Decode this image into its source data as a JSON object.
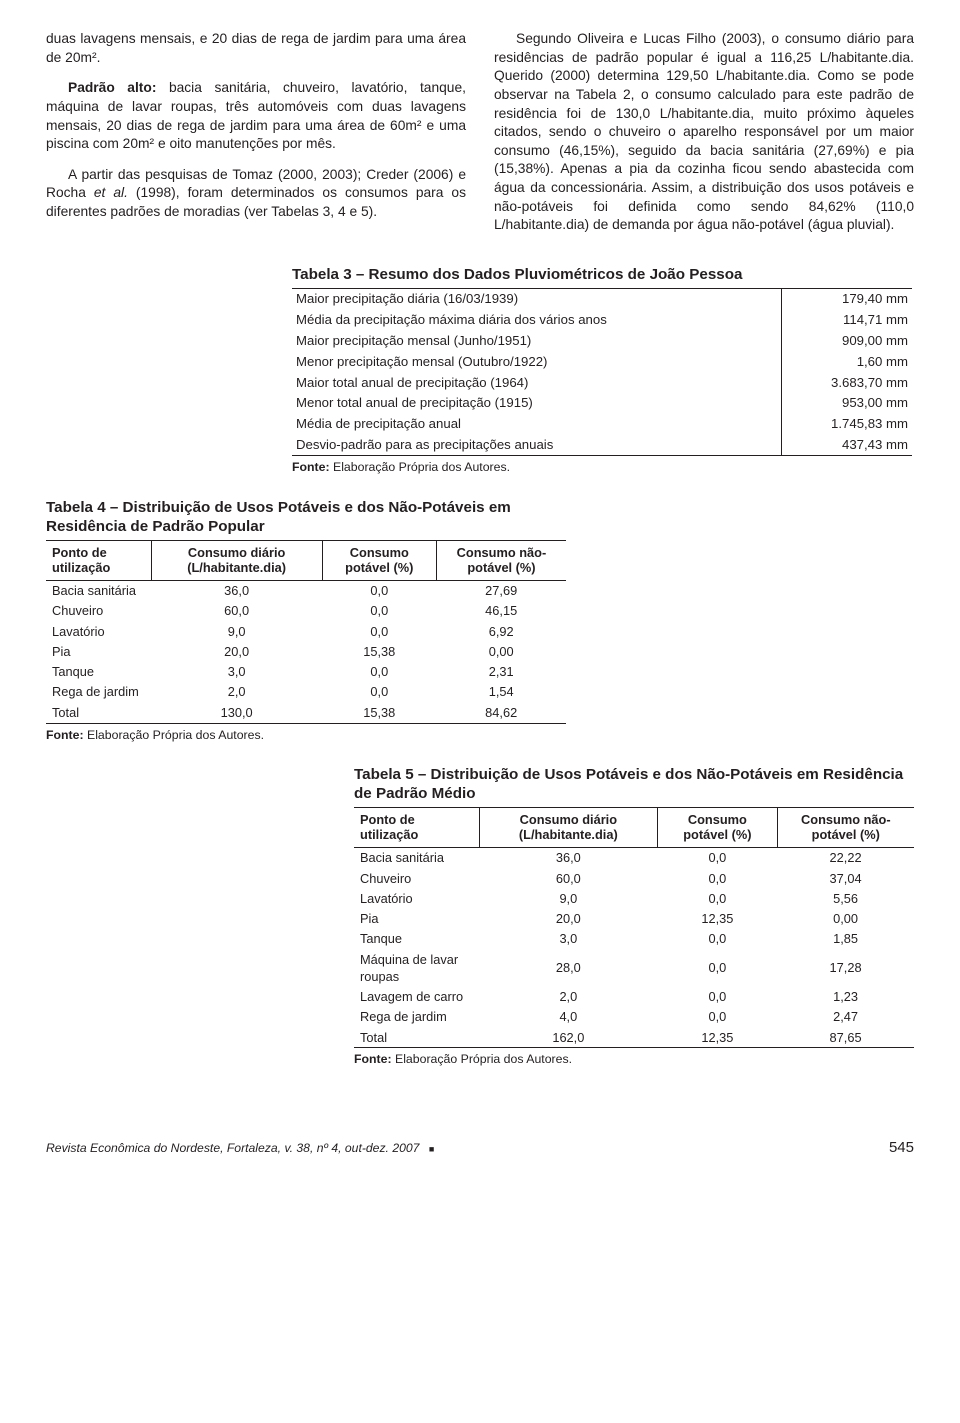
{
  "intro": {
    "left": {
      "p1": "duas lavagens mensais, e 20 dias de rega de jardim para uma área de 20m².",
      "p2a": "Padrão alto:",
      "p2b": " bacia sanitária, chuveiro, lavatório, tanque, máquina de lavar roupas, três automóveis com duas lavagens mensais, 20 dias de rega de jardim para uma área de 60m² e uma piscina com 20m² e oito manutenções por mês.",
      "p3a": "A partir das pesquisas de Tomaz (2000, 2003); Creder (2006) e Rocha ",
      "p3b": "et al.",
      "p3c": " (1998), foram determinados os consumos para os diferentes padrões de moradias (ver Tabelas 3, 4 e 5)."
    },
    "right": {
      "p1": "Segundo Oliveira e Lucas Filho (2003), o consumo diário para residências de padrão popular é igual a 116,25 L/habitante.dia. Querido (2000) determina 129,50 L/habitante.dia. Como se pode observar na Tabela 2, o consumo calculado para este padrão de residência foi de 130,0 L/habitante.dia, muito próximo àqueles citados, sendo o chuveiro o aparelho responsável por um maior consumo (46,15%), seguido da bacia sanitária (27,69%) e pia (15,38%). Apenas a pia da cozinha ficou sendo abastecida com água da concessionária. Assim, a distribuição dos usos potáveis e não-potáveis foi definida como sendo 84,62% (110,0 L/habitante.dia) de demanda por água não-potável (água pluvial)."
    }
  },
  "table3": {
    "title": "Tabela 3 – Resumo dos Dados Pluviométricos de João Pessoa",
    "rows": [
      [
        "Maior precipitação diária (16/03/1939)",
        "179,40 mm"
      ],
      [
        "Média da precipitação máxima diária dos vários anos",
        "114,71 mm"
      ],
      [
        "Maior precipitação mensal (Junho/1951)",
        "909,00 mm"
      ],
      [
        "Menor precipitação mensal (Outubro/1922)",
        "1,60 mm"
      ],
      [
        "Maior total anual de precipitação (1964)",
        "3.683,70 mm"
      ],
      [
        "Menor total anual de precipitação (1915)",
        "953,00 mm"
      ],
      [
        "Média de precipitação anual",
        "1.745,83 mm"
      ],
      [
        "Desvio-padrão para as precipitações anuais",
        "437,43 mm"
      ]
    ],
    "fonte_label": "Fonte:",
    "fonte_text": " Elaboração Própria dos Autores."
  },
  "table4": {
    "title": "Tabela 4 – Distribuição de Usos Potáveis e dos Não-Potáveis em Residência de Padrão Popular",
    "headers": [
      "Ponto de utilização",
      "Consumo diário (L/habitante.dia)",
      "Consumo potável (%)",
      "Consumo não-potável (%)"
    ],
    "rows": [
      [
        "Bacia sanitária",
        "36,0",
        "0,0",
        "27,69"
      ],
      [
        "Chuveiro",
        "60,0",
        "0,0",
        "46,15"
      ],
      [
        "Lavatório",
        "9,0",
        "0,0",
        "6,92"
      ],
      [
        "Pia",
        "20,0",
        "15,38",
        "0,00"
      ],
      [
        "Tanque",
        "3,0",
        "0,0",
        "2,31"
      ],
      [
        "Rega de jardim",
        "2,0",
        "0,0",
        "1,54"
      ],
      [
        "Total",
        "130,0",
        "15,38",
        "84,62"
      ]
    ],
    "fonte_label": "Fonte:",
    "fonte_text": " Elaboração Própria dos Autores."
  },
  "table5": {
    "title": "Tabela 5 – Distribuição de Usos Potáveis e dos Não-Potáveis em Residência de Padrão Médio",
    "headers": [
      "Ponto de utilização",
      "Consumo diário (L/habitante.dia)",
      "Consumo potável (%)",
      "Consumo não-potável (%)"
    ],
    "rows": [
      [
        "Bacia sanitária",
        "36,0",
        "0,0",
        "22,22"
      ],
      [
        "Chuveiro",
        "60,0",
        "0,0",
        "37,04"
      ],
      [
        "Lavatório",
        "9,0",
        "0,0",
        "5,56"
      ],
      [
        "Pia",
        "20,0",
        "12,35",
        "0,00"
      ],
      [
        "Tanque",
        "3,0",
        "0,0",
        "1,85"
      ],
      [
        "Máquina de lavar roupas",
        "28,0",
        "0,0",
        "17,28"
      ],
      [
        "Lavagem de carro",
        "2,0",
        "0,0",
        "1,23"
      ],
      [
        "Rega de jardim",
        "4,0",
        "0,0",
        "2,47"
      ],
      [
        "Total",
        "162,0",
        "12,35",
        "87,65"
      ]
    ],
    "fonte_label": "Fonte:",
    "fonte_text": " Elaboração Própria dos Autores."
  },
  "footer": {
    "left": "Revista Econômica do Nordeste, Fortaleza, v. 38, nº 4, out-dez. 2007",
    "page": "545"
  }
}
